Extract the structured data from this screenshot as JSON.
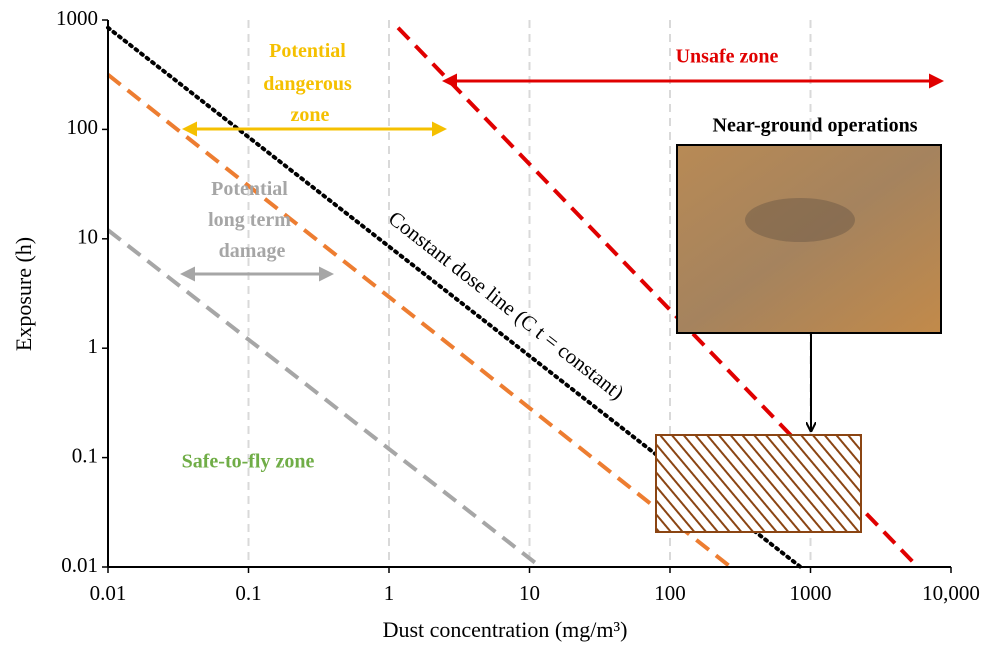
{
  "chart_data": {
    "type": "line",
    "x_label": "Dust concentration (mg/m³)",
    "y_label": "Exposure (h)",
    "xscale": "log",
    "yscale": "log",
    "xlim": [
      0.01,
      10000
    ],
    "ylim": [
      0.01,
      1000
    ],
    "xticks": [
      0.01,
      0.1,
      1,
      10,
      100,
      1000,
      {
        "value": 10000,
        "label": "10,000"
      }
    ],
    "yticks": [
      0.01,
      0.1,
      1,
      10,
      100,
      1000
    ],
    "grid": "x",
    "series": [
      {
        "color": "#000000",
        "style": "dotted",
        "x": [
          0.01,
          850
        ],
        "values": [
          850,
          0.01
        ]
      },
      {
        "color": "#e00000",
        "style": "dashed",
        "x": [
          1.16,
          5800
        ],
        "values": [
          850,
          0.01
        ]
      },
      {
        "color": "#ed7d31",
        "style": "dashed",
        "x": [
          0.01,
          270
        ],
        "values": [
          316,
          0.01
        ]
      },
      {
        "color": "#a6a6a6",
        "style": "dashed",
        "x": [
          0.01,
          12
        ],
        "values": [
          12,
          0.01
        ]
      }
    ],
    "annotations": {
      "dangerous": [
        "Potential",
        "dangerous",
        "zone"
      ],
      "unsafe": "Unsafe zone",
      "long_term": [
        "Potential",
        "long term",
        "damage"
      ],
      "safe": "Safe-to-fly zone",
      "dose_line": "Constant dose line (C  t = constant)",
      "photo": "Near-ground operations"
    }
  }
}
